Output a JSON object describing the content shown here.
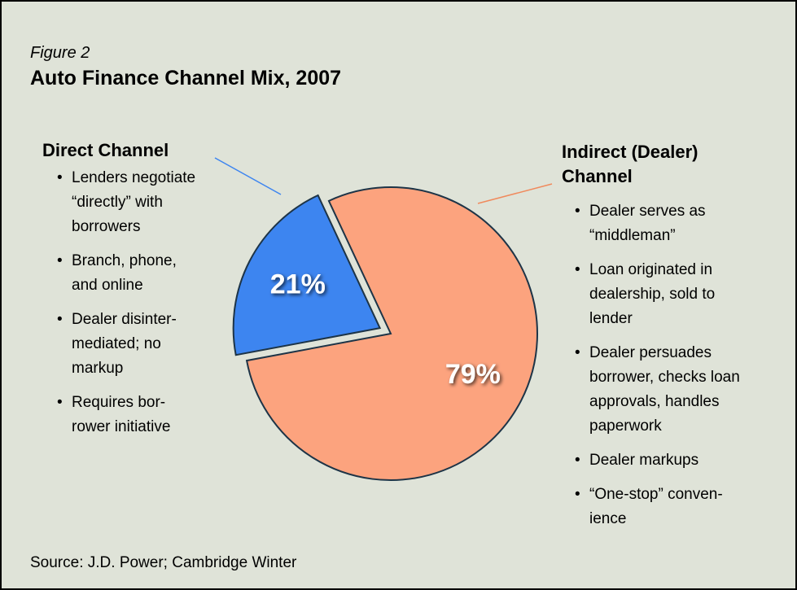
{
  "chart_data": {
    "type": "pie",
    "figure_label": "Figure 2",
    "title": "Auto Finance Channel Mix, 2007",
    "source": "Source:  J.D. Power; Cambridge Winter",
    "categories": [
      "Direct Channel",
      "Indirect (Dealer) Channel"
    ],
    "values": [
      21,
      79
    ],
    "value_labels": [
      "21%",
      "79%"
    ],
    "colors": [
      "#3d85f0",
      "#fca37e"
    ],
    "bullets": [
      [
        [
          "Lenders negotiate",
          "“directly” with",
          "borrowers"
        ],
        [
          "Branch, phone,",
          "and online"
        ],
        [
          "Dealer disinter-",
          "mediated; no",
          "markup"
        ],
        [
          "Requires bor-",
          "rower initiative"
        ]
      ],
      [
        [
          "Dealer serves as",
          "“middleman”"
        ],
        [
          "Loan originated in",
          "dealership, sold to",
          "lender"
        ],
        [
          "Dealer persuades",
          "borrower, checks loan",
          "approvals, handles",
          "paperwork"
        ],
        [
          "Dealer markups"
        ],
        [
          "“One-stop” conven-",
          "ience"
        ]
      ]
    ]
  }
}
